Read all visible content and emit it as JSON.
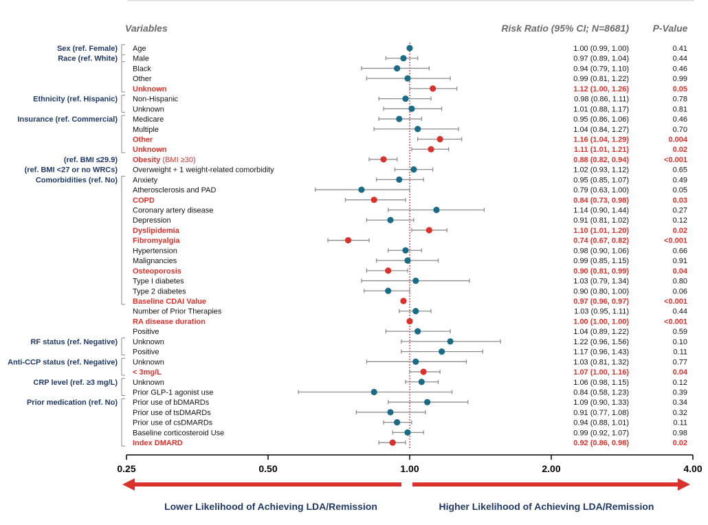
{
  "chart_data": {
    "type": "forest",
    "headers": {
      "variables": "Variables",
      "ratio": "Risk Ratio (95% CI; N=8681)",
      "pvalue": "P-Value"
    },
    "x_scale": "log2",
    "xlim": [
      0.25,
      4.0
    ],
    "x_ticks": [
      "0.25",
      "0.50",
      "1.00",
      "2.00",
      "4.00"
    ],
    "reference_line": 1.0,
    "direction_labels": {
      "lower": "Lower Likelihood of Achieving LDA/Remission",
      "higher": "Higher Likelihood of Achieving LDA/Remission"
    },
    "colors": {
      "significant": "#d9312b",
      "nonsignificant": "#1a6b85",
      "ci_line": "#8c8c8c",
      "group_label": "#1f3864"
    },
    "groups": [
      {
        "label": "Sex (ref. Female)",
        "start": 0,
        "end": 1
      },
      {
        "label": "Race (ref. White)",
        "start": 1,
        "end": 4
      },
      {
        "label": "Ethnicity (ref. Hispanic)",
        "start": 5,
        "end": 6
      },
      {
        "label": "Insurance (ref. Commercial)",
        "start": 7,
        "end": 10
      },
      {
        "label": "(ref. BMI ≤29.9)",
        "start": 11,
        "end": 11
      },
      {
        "label": "(ref. BMI <27 or no WRCs)",
        "start": 12,
        "end": 12
      },
      {
        "label": "Comorbidities (ref. No)",
        "start": 13,
        "end": 25
      },
      {
        "label": "RF status (ref. Negative)",
        "start": 29,
        "end": 30
      },
      {
        "label": "Anti-CCP status (ref. Negative)",
        "start": 31,
        "end": 32
      },
      {
        "label": "CRP level (ref. ≥3 mg/L)",
        "start": 33,
        "end": 34
      },
      {
        "label": "Prior medication (ref. No)",
        "start": 35,
        "end": 39
      }
    ],
    "rows": [
      {
        "label": "Age",
        "rr": 1.0,
        "lo": 0.99,
        "hi": 1.0,
        "ci_text": "1.00 (0.99, 1.00)",
        "p": "0.41",
        "sig": false
      },
      {
        "label": "Male",
        "rr": 0.97,
        "lo": 0.89,
        "hi": 1.04,
        "ci_text": "0.97 (0.89, 1.04)",
        "p": "0.44",
        "sig": false
      },
      {
        "label": "Black",
        "rr": 0.94,
        "lo": 0.79,
        "hi": 1.1,
        "ci_text": "0.94 (0.79, 1.10)",
        "p": "0.46",
        "sig": false
      },
      {
        "label": "Other",
        "rr": 0.99,
        "lo": 0.81,
        "hi": 1.22,
        "ci_text": "0.99 (0.81, 1.22)",
        "p": "0.99",
        "sig": false
      },
      {
        "label": "Unknown",
        "rr": 1.12,
        "lo": 1.0,
        "hi": 1.26,
        "ci_text": "1.12 (1.00, 1.26)",
        "p": "0.05",
        "sig": true
      },
      {
        "label": "Non-Hispanic",
        "rr": 0.98,
        "lo": 0.86,
        "hi": 1.11,
        "ci_text": "0.98 (0.86, 1.11)",
        "p": "0.78",
        "sig": false
      },
      {
        "label": "Unknown",
        "rr": 1.01,
        "lo": 0.88,
        "hi": 1.17,
        "ci_text": "1.01 (0.88, 1.17)",
        "p": "0.81",
        "sig": false
      },
      {
        "label": "Medicare",
        "rr": 0.95,
        "lo": 0.86,
        "hi": 1.06,
        "ci_text": "0.95 (0.86, 1.06)",
        "p": "0.46",
        "sig": false
      },
      {
        "label": "Multiple",
        "rr": 1.04,
        "lo": 0.84,
        "hi": 1.27,
        "ci_text": "1.04 (0.84, 1.27)",
        "p": "0.70",
        "sig": false
      },
      {
        "label": "Other",
        "rr": 1.16,
        "lo": 1.04,
        "hi": 1.29,
        "ci_text": "1.16 (1.04, 1.29)",
        "p": "0.004",
        "sig": true
      },
      {
        "label": "Unknown",
        "rr": 1.11,
        "lo": 1.01,
        "hi": 1.21,
        "ci_text": "1.11 (1.01, 1.21)",
        "p": "0.02",
        "sig": true
      },
      {
        "label": "Obesity",
        "label_suffix": " (BMI ≥30)",
        "rr": 0.88,
        "lo": 0.82,
        "hi": 0.94,
        "ci_text": "0.88 (0.82, 0.94)",
        "p": "<0.001",
        "sig": true
      },
      {
        "label": "Overweight + 1 weight-related comorbidity",
        "rr": 1.02,
        "lo": 0.93,
        "hi": 1.12,
        "ci_text": "1.02 (0.93, 1.12)",
        "p": "0.65",
        "sig": false
      },
      {
        "label": "Anxiety",
        "rr": 0.95,
        "lo": 0.85,
        "hi": 1.07,
        "ci_text": "0.95 (0.85, 1.07)",
        "p": "0.49",
        "sig": false
      },
      {
        "label": "Atherosclerosis and PAD",
        "rr": 0.79,
        "lo": 0.63,
        "hi": 1.0,
        "ci_text": "0.79 (0.63, 1.00)",
        "p": "0.05",
        "sig": false
      },
      {
        "label": "COPD",
        "rr": 0.84,
        "lo": 0.73,
        "hi": 0.98,
        "ci_text": "0.84 (0.73, 0.98)",
        "p": "0.03",
        "sig": true
      },
      {
        "label": "Coronary artery disease",
        "rr": 1.14,
        "lo": 0.9,
        "hi": 1.44,
        "ci_text": "1.14 (0.90, 1.44)",
        "p": "0.27",
        "sig": false
      },
      {
        "label": "Depression",
        "rr": 0.91,
        "lo": 0.81,
        "hi": 1.02,
        "ci_text": "0.91 (0.81, 1.02)",
        "p": "0.12",
        "sig": false
      },
      {
        "label": "Dyslipidemia",
        "rr": 1.1,
        "lo": 1.01,
        "hi": 1.2,
        "ci_text": "1.10 (1.01, 1.20)",
        "p": "0.02",
        "sig": true
      },
      {
        "label": "Fibromyalgia",
        "rr": 0.74,
        "lo": 0.67,
        "hi": 0.82,
        "ci_text": "0.74 (0.67, 0.82)",
        "p": "<0.001",
        "sig": true
      },
      {
        "label": "Hypertension",
        "rr": 0.98,
        "lo": 0.9,
        "hi": 1.06,
        "ci_text": "0.98 (0.90, 1.06)",
        "p": "0.66",
        "sig": false
      },
      {
        "label": "Malignancies",
        "rr": 0.99,
        "lo": 0.85,
        "hi": 1.15,
        "ci_text": "0.99 (0.85, 1.15)",
        "p": "0.91",
        "sig": false
      },
      {
        "label": "Osteoporosis",
        "rr": 0.9,
        "lo": 0.81,
        "hi": 0.99,
        "ci_text": "0.90 (0.81, 0.99)",
        "p": "0.04",
        "sig": true
      },
      {
        "label": "Type I diabetes",
        "rr": 1.03,
        "lo": 0.79,
        "hi": 1.34,
        "ci_text": "1.03 (0.79, 1.34)",
        "p": "0.80",
        "sig": false
      },
      {
        "label": "Type 2 diabetes",
        "rr": 0.9,
        "lo": 0.8,
        "hi": 1.0,
        "ci_text": "0.90 (0.80, 1.00)",
        "p": "0.06",
        "sig": false
      },
      {
        "label": "Baseline CDAI Value",
        "rr": 0.97,
        "lo": 0.96,
        "hi": 0.97,
        "ci_text": "0.97 (0.96, 0.97)",
        "p": "<0.001",
        "sig": true
      },
      {
        "label": "Number of Prior Therapies",
        "rr": 1.03,
        "lo": 0.95,
        "hi": 1.11,
        "ci_text": "1.03 (0.95, 1.11)",
        "p": "0.44",
        "sig": false
      },
      {
        "label": "RA disease duration",
        "rr": 1.0,
        "lo": 1.0,
        "hi": 1.0,
        "ci_text": "1.00 (1.00, 1.00)",
        "p": "<0.001",
        "sig": true
      },
      {
        "label": "Positive",
        "rr": 1.04,
        "lo": 0.89,
        "hi": 1.22,
        "ci_text": "1.04 (0.89, 1.22)",
        "p": "0.59",
        "sig": false
      },
      {
        "label": "Unknown",
        "rr": 1.22,
        "lo": 0.96,
        "hi": 1.56,
        "ci_text": "1.22 (0.96, 1.56)",
        "p": "0.10",
        "sig": false
      },
      {
        "label": "Positive",
        "rr": 1.17,
        "lo": 0.96,
        "hi": 1.43,
        "ci_text": "1.17 (0.96, 1.43)",
        "p": "0.11",
        "sig": false
      },
      {
        "label": "Unknown",
        "rr": 1.03,
        "lo": 0.81,
        "hi": 1.32,
        "ci_text": "1.03 (0.81, 1.32)",
        "p": "0.77",
        "sig": false
      },
      {
        "label": "< 3mg/L",
        "rr": 1.07,
        "lo": 1.0,
        "hi": 1.16,
        "ci_text": "1.07 (1.00, 1.16)",
        "p": "0.04",
        "sig": true
      },
      {
        "label": "Unknown",
        "rr": 1.06,
        "lo": 0.98,
        "hi": 1.15,
        "ci_text": "1.06 (0.98, 1.15)",
        "p": "0.12",
        "sig": false
      },
      {
        "label": "Prior GLP-1 agonist use",
        "rr": 0.84,
        "lo": 0.58,
        "hi": 1.23,
        "ci_text": "0.84 (0.58, 1.23)",
        "p": "0.39",
        "sig": false
      },
      {
        "label": "Prior use of bDMARDs",
        "rr": 1.09,
        "lo": 0.9,
        "hi": 1.33,
        "ci_text": "1.09 (0.90, 1.33)",
        "p": "0.34",
        "sig": false
      },
      {
        "label": "Prior use of tsDMARDs",
        "rr": 0.91,
        "lo": 0.77,
        "hi": 1.08,
        "ci_text": "0.91 (0.77, 1.08)",
        "p": "0.32",
        "sig": false
      },
      {
        "label": "Prior use of csDMARDs",
        "rr": 0.94,
        "lo": 0.88,
        "hi": 1.01,
        "ci_text": "0.94 (0.88, 1.01)",
        "p": "0.11",
        "sig": false
      },
      {
        "label": "Baseline corticosteroid Use",
        "rr": 0.99,
        "lo": 0.92,
        "hi": 1.07,
        "ci_text": "0.99 (0.92, 1.07)",
        "p": "0.98",
        "sig": false
      },
      {
        "label": "Index DMARD",
        "rr": 0.92,
        "lo": 0.86,
        "hi": 0.98,
        "ci_text": "0.92 (0.86, 0.98)",
        "p": "0.02",
        "sig": true
      }
    ]
  }
}
